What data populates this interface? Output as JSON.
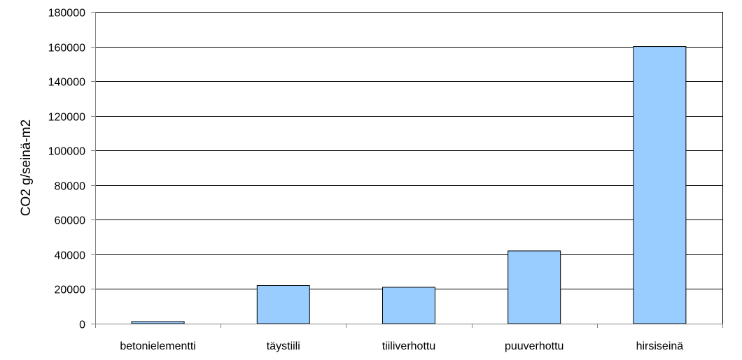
{
  "chart_data": {
    "type": "bar",
    "title": "",
    "xlabel": "",
    "ylabel": "CO2  g/seinä-m2",
    "categories": [
      "betonielementti",
      "täystiili",
      "tiiliverhottu",
      "puuverhottu",
      "hirsiseinä"
    ],
    "values": [
      1200,
      22000,
      21000,
      42000,
      160000
    ],
    "ylim": [
      0,
      180000
    ],
    "yticks": [
      0,
      20000,
      40000,
      60000,
      80000,
      100000,
      120000,
      140000,
      160000,
      180000
    ],
    "grid": true,
    "legend": "none",
    "colors": {
      "bar_fill": "#99ccff",
      "bar_stroke": "#000000",
      "grid": "#000000",
      "axis": "#808080"
    }
  }
}
